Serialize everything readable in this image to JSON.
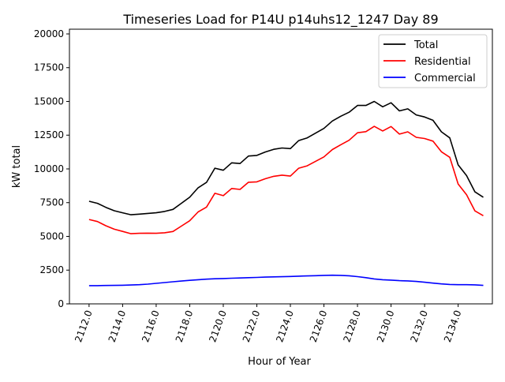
{
  "chart_data": {
    "type": "line",
    "title": "Timeseries Load for P14U p14uhs12_1247  Day 89",
    "xlabel": "Hour of Year",
    "ylabel": "kW total",
    "xlim": [
      2110.83,
      2136.04
    ],
    "ylim": [
      0,
      20350
    ],
    "x_start": 2112.0,
    "x_step": 0.5,
    "xticks": [
      "2112.0",
      "2114.0",
      "2116.0",
      "2118.0",
      "2120.0",
      "2122.0",
      "2124.0",
      "2126.0",
      "2128.0",
      "2130.0",
      "2132.0",
      "2134.0"
    ],
    "xtick_values": [
      2112,
      2114,
      2116,
      2118,
      2120,
      2122,
      2124,
      2126,
      2128,
      2130,
      2132,
      2134
    ],
    "yticks": [
      "0",
      "2500",
      "5000",
      "7500",
      "10000",
      "12500",
      "15000",
      "17500",
      "20000"
    ],
    "ytick_values": [
      0,
      2500,
      5000,
      7500,
      10000,
      12500,
      15000,
      17500,
      20000
    ],
    "legend_position": "top-right",
    "grid": false,
    "series": [
      {
        "name": "Total",
        "color": "#000000",
        "values": [
          7600,
          7450,
          7150,
          6900,
          6750,
          6600,
          6650,
          6700,
          6750,
          6850,
          7000,
          7450,
          7900,
          8600,
          9000,
          10050,
          9900,
          10450,
          10400,
          10950,
          11000,
          11250,
          11450,
          11550,
          11500,
          12100,
          12300,
          12650,
          13000,
          13550,
          13900,
          14200,
          14700,
          14700,
          15000,
          14600,
          14900,
          14300,
          14450,
          14000,
          13850,
          13600,
          12750,
          12300,
          10300,
          9500,
          8300,
          7900
        ]
      },
      {
        "name": "Residential",
        "color": "#ff0000",
        "values": [
          6250,
          6100,
          5790,
          5530,
          5370,
          5200,
          5230,
          5240,
          5230,
          5270,
          5360,
          5760,
          6160,
          6810,
          7170,
          8190,
          8020,
          8550,
          8480,
          9010,
          9040,
          9270,
          9450,
          9540,
          9470,
          10050,
          10230,
          10560,
          10890,
          11430,
          11790,
          12120,
          12680,
          12760,
          13150,
          12810,
          13140,
          12580,
          12750,
          12340,
          12250,
          12060,
          11270,
          10860,
          8880,
          8080,
          6890,
          6530
        ]
      },
      {
        "name": "Commercial",
        "color": "#0000ff",
        "values": [
          1350,
          1350,
          1360,
          1370,
          1380,
          1400,
          1420,
          1460,
          1520,
          1580,
          1640,
          1690,
          1740,
          1790,
          1830,
          1860,
          1880,
          1900,
          1920,
          1940,
          1960,
          1980,
          2000,
          2010,
          2030,
          2050,
          2070,
          2090,
          2110,
          2120,
          2110,
          2080,
          2020,
          1940,
          1850,
          1790,
          1760,
          1720,
          1700,
          1660,
          1600,
          1540,
          1480,
          1440,
          1420,
          1420,
          1410,
          1370
        ]
      }
    ]
  }
}
